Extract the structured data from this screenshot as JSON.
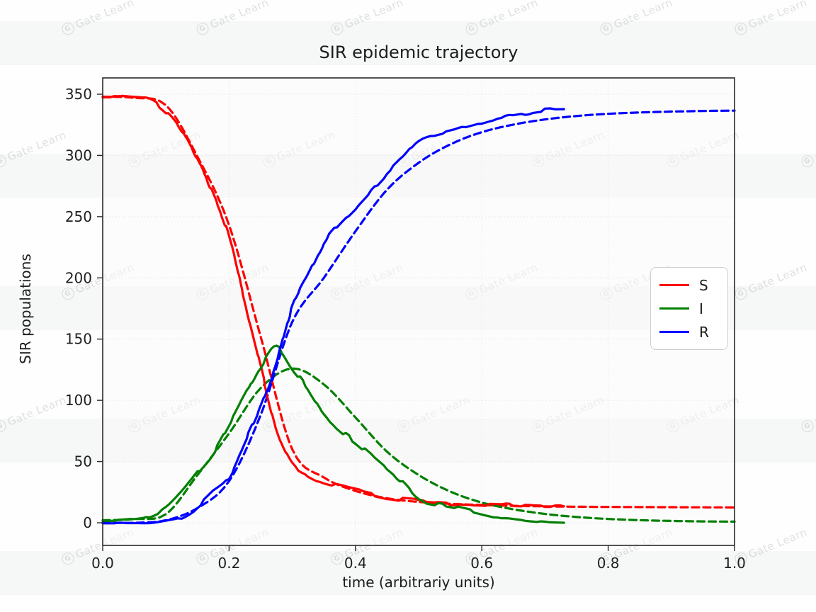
{
  "watermark": {
    "logo": "G",
    "text": "Gate Learn"
  },
  "chart_data": {
    "type": "line",
    "title": "SIR epidemic trajectory",
    "xlabel": "time (arbitrariy units)",
    "ylabel": "SIR populations",
    "xlim": [
      0.0,
      1.0
    ],
    "ylim": [
      -18,
      363
    ],
    "grid": "faint dotted, both axes",
    "x_ticks": {
      "values": [
        0.0,
        0.2,
        0.4,
        0.6,
        0.8,
        1.0
      ],
      "labels": [
        "0.0",
        "0.2",
        "0.4",
        "0.6",
        "0.8",
        "1.0"
      ]
    },
    "y_ticks": {
      "values": [
        0,
        50,
        100,
        150,
        200,
        250,
        300,
        350
      ],
      "labels": [
        "0",
        "50",
        "100",
        "150",
        "200",
        "250",
        "300",
        "350"
      ]
    },
    "legend": {
      "position": "center-right",
      "entries": [
        {
          "label": "S",
          "color": "#ff0000"
        },
        {
          "label": "I",
          "color": "#008000"
        },
        {
          "label": "R",
          "color": "#0000ff"
        }
      ]
    },
    "series": [
      {
        "id": "S-stochastic",
        "legend": "S",
        "color": "#ff0000",
        "line": "solid",
        "x": [
          0,
          0.025,
          0.05,
          0.075,
          0.1,
          0.125,
          0.15,
          0.175,
          0.2,
          0.225,
          0.25,
          0.275,
          0.3,
          0.325,
          0.35,
          0.375,
          0.4,
          0.425,
          0.45,
          0.475,
          0.5,
          0.525,
          0.55,
          0.575,
          0.6,
          0.625,
          0.65,
          0.675,
          0.7,
          0.73
        ],
        "y": [
          348,
          348,
          347,
          345,
          336,
          320,
          296,
          268,
          233,
          180,
          128,
          76,
          48,
          39,
          33,
          30,
          27,
          24,
          21,
          19,
          18,
          17,
          16,
          15.5,
          15,
          14.5,
          14,
          13.5,
          13,
          13
        ]
      },
      {
        "id": "I-stochastic",
        "legend": "I",
        "color": "#008000",
        "line": "solid",
        "x": [
          0,
          0.025,
          0.05,
          0.075,
          0.1,
          0.125,
          0.15,
          0.175,
          0.2,
          0.225,
          0.25,
          0.275,
          0.3,
          0.325,
          0.35,
          0.375,
          0.4,
          0.425,
          0.45,
          0.475,
          0.5,
          0.525,
          0.55,
          0.575,
          0.6,
          0.625,
          0.65,
          0.675,
          0.7,
          0.73
        ],
        "y": [
          2,
          2,
          3,
          5,
          12,
          25,
          41,
          57,
          80,
          104,
          127,
          143,
          126,
          109,
          89,
          76,
          66,
          55,
          44,
          33,
          20,
          16,
          14,
          11,
          8,
          5,
          3,
          1.5,
          0.5,
          0
        ]
      },
      {
        "id": "R-stochastic",
        "legend": "R",
        "color": "#0000ff",
        "line": "solid",
        "x": [
          0,
          0.025,
          0.05,
          0.075,
          0.1,
          0.125,
          0.15,
          0.175,
          0.2,
          0.225,
          0.25,
          0.275,
          0.3,
          0.325,
          0.35,
          0.375,
          0.4,
          0.425,
          0.45,
          0.475,
          0.5,
          0.525,
          0.55,
          0.575,
          0.6,
          0.625,
          0.65,
          0.675,
          0.7,
          0.73
        ],
        "y": [
          0,
          0,
          0,
          0,
          2,
          5,
          13,
          25,
          37,
          66,
          95,
          131,
          176,
          202,
          228,
          244,
          257,
          271,
          285,
          298,
          312,
          317,
          320,
          323.5,
          327,
          330.5,
          333,
          335,
          336.5,
          337
        ]
      },
      {
        "id": "S-deterministic",
        "legend": "S",
        "color": "#ff0000",
        "line": "dashed",
        "x": [
          0,
          0.05,
          0.1,
          0.15,
          0.2,
          0.25,
          0.3,
          0.35,
          0.4,
          0.45,
          0.5,
          0.55,
          0.6,
          0.65,
          0.7,
          0.75,
          0.8,
          0.85,
          0.9,
          0.95,
          1.0
        ],
        "y": [
          348,
          347,
          341,
          299,
          243,
          152,
          60,
          37,
          26,
          20,
          17,
          15.5,
          14.5,
          13.8,
          13.4,
          13.1,
          12.9,
          12.8,
          12.7,
          12.6,
          12.5
        ]
      },
      {
        "id": "I-deterministic",
        "legend": "I",
        "color": "#008000",
        "line": "dashed",
        "x": [
          0,
          0.05,
          0.1,
          0.15,
          0.2,
          0.25,
          0.3,
          0.35,
          0.4,
          0.45,
          0.5,
          0.55,
          0.6,
          0.65,
          0.7,
          0.75,
          0.8,
          0.85,
          0.9,
          0.95,
          1.0
        ],
        "y": [
          2,
          3,
          7,
          39,
          73,
          110,
          126,
          113,
          86,
          58,
          39,
          25.5,
          16.5,
          11,
          7.2,
          4.7,
          3.1,
          2.1,
          1.5,
          1.1,
          0.9
        ]
      },
      {
        "id": "R-deterministic",
        "legend": "R",
        "color": "#0000ff",
        "line": "dashed",
        "x": [
          0,
          0.05,
          0.1,
          0.15,
          0.2,
          0.25,
          0.3,
          0.35,
          0.4,
          0.45,
          0.5,
          0.55,
          0.6,
          0.65,
          0.7,
          0.75,
          0.8,
          0.85,
          0.9,
          0.95,
          1.0
        ],
        "y": [
          0,
          0,
          2,
          12,
          34,
          88,
          164,
          200,
          238,
          272,
          294,
          309,
          319,
          325.2,
          329.4,
          332.2,
          334,
          335.1,
          335.8,
          336.3,
          336.6
        ]
      }
    ]
  }
}
